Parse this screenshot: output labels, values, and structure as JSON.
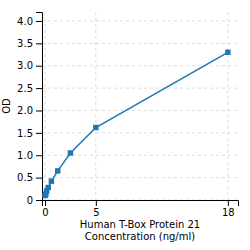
{
  "chart_data": {
    "type": "line",
    "xlabel": "Human T-Box Protein 21\nConcentration (ng/ml)",
    "ylabel": "OD",
    "x": [
      0.0,
      0.078,
      0.156,
      0.313,
      0.625,
      1.25,
      2.5,
      5.0,
      18.0
    ],
    "values": [
      0.1,
      0.13,
      0.2,
      0.28,
      0.42,
      0.65,
      1.05,
      1.62,
      3.3
    ],
    "marker": "square",
    "xlim": [
      -0.3,
      19
    ],
    "ylim": [
      0,
      4.2
    ],
    "xticks": [
      0,
      5,
      18
    ],
    "yticks": [
      0,
      0.5,
      {
        "value": 1,
        "label": "1.0"
      },
      1.5,
      {
        "value": 2,
        "label": "2.0"
      },
      2.5,
      {
        "value": 3,
        "label": "3.0"
      },
      3.5,
      {
        "value": 4,
        "label": "4.0"
      }
    ],
    "grid": true
  }
}
